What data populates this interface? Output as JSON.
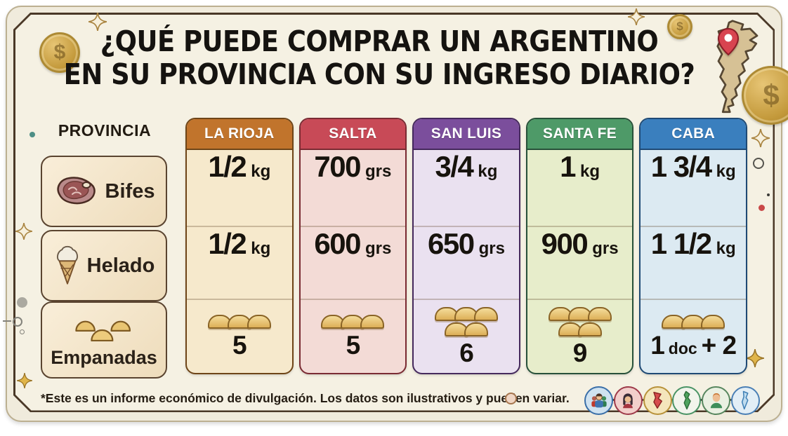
{
  "title": {
    "line1": "¿QUÉ PUEDE COMPRAR UN ARGENTINO",
    "line2": "EN SU PROVINCIA CON SU INGRESO DIARIO?"
  },
  "table": {
    "row_header_label": "PROVINCIA",
    "products": [
      {
        "label": "Bifes",
        "icon": "steak-icon"
      },
      {
        "label": "Helado",
        "icon": "ice-cream-icon"
      },
      {
        "label": "Empanadas",
        "icon": "empanadas-icon"
      }
    ],
    "columns": [
      {
        "name": "LA RIOJA",
        "header_color": "#C1742C",
        "body_color": "#F6E9CC",
        "border_color": "#6E4518",
        "cells": [
          {
            "value": "1/2",
            "unit": "kg"
          },
          {
            "value": "1/2",
            "unit": "kg"
          },
          {
            "icon_count": 3,
            "value": "5"
          }
        ]
      },
      {
        "name": "SALTA",
        "header_color": "#C84A57",
        "body_color": "#F3DBD6",
        "border_color": "#7A2B33",
        "cells": [
          {
            "value": "700",
            "unit": "grs"
          },
          {
            "value": "600",
            "unit": "grs"
          },
          {
            "icon_count": 3,
            "value": "5"
          }
        ]
      },
      {
        "name": "SAN LUIS",
        "header_color": "#7B4E9C",
        "body_color": "#EAE1F0",
        "border_color": "#45295C",
        "cells": [
          {
            "value": "3/4",
            "unit": "kg"
          },
          {
            "value": "650",
            "unit": "grs"
          },
          {
            "icon_count": 5,
            "value": "6"
          }
        ]
      },
      {
        "name": "SANTA FE",
        "header_color": "#4E9A68",
        "body_color": "#E7EDCB",
        "border_color": "#28513A",
        "cells": [
          {
            "value": "1",
            "unit": "kg"
          },
          {
            "value": "900",
            "unit": "grs"
          },
          {
            "icon_count": 5,
            "value": "9"
          }
        ]
      },
      {
        "name": "CABA",
        "header_color": "#3A7FBE",
        "body_color": "#DCEAF2",
        "border_color": "#1F4A75",
        "cells": [
          {
            "value": "1 3/4",
            "unit": "kg"
          },
          {
            "value": "1 1/2",
            "unit": "kg"
          },
          {
            "icon_count": 3,
            "value": "1",
            "unit": "doc",
            "suffix": "+ 2"
          }
        ]
      }
    ]
  },
  "footer": {
    "disclaimer": "*Este es un informe económico de divulgación. Los datos son ilustrativos y pueden variar."
  },
  "badges": [
    {
      "name": "people-group-icon",
      "ring": "#3A6FA8",
      "bg": "#CFE2F0"
    },
    {
      "name": "woman-icon",
      "ring": "#9E3A4A",
      "bg": "#F2CFCB"
    },
    {
      "name": "red-province-map-icon",
      "ring": "#B8923A",
      "bg": "#F4E6BC"
    },
    {
      "name": "green-province-map-icon",
      "ring": "#4A9466",
      "bg": "#F2F4EC"
    },
    {
      "name": "man-icon",
      "ring": "#57865E",
      "bg": "#EAF0E2"
    },
    {
      "name": "blue-country-map-icon",
      "ring": "#4A7FB5",
      "bg": "#E2EEF6"
    }
  ],
  "decor": {
    "coin_color": "#C49A3C",
    "sparkle_color": "#A98440",
    "map_fill": "#D6C195",
    "pin_color": "#D84450"
  },
  "chart_data": {
    "type": "table",
    "title": "¿QUÉ PUEDE COMPRAR UN ARGENTINO EN SU PROVINCIA CON SU INGRESO DIARIO?",
    "columns": [
      "PROVINCIA",
      "LA RIOJA",
      "SALTA",
      "SAN LUIS",
      "SANTA FE",
      "CABA"
    ],
    "rows": [
      [
        "Bifes",
        "1/2 kg",
        "700 grs",
        "3/4 kg",
        "1 kg",
        "1 3/4 kg"
      ],
      [
        "Helado",
        "1/2 kg",
        "600 grs",
        "650 grs",
        "900 grs",
        "1 1/2 kg"
      ],
      [
        "Empanadas",
        "5",
        "5",
        "6",
        "9",
        "1 doc + 2"
      ]
    ],
    "note": "*Este es un informe económico de divulgación. Los datos son ilustrativos y pueden variar."
  }
}
